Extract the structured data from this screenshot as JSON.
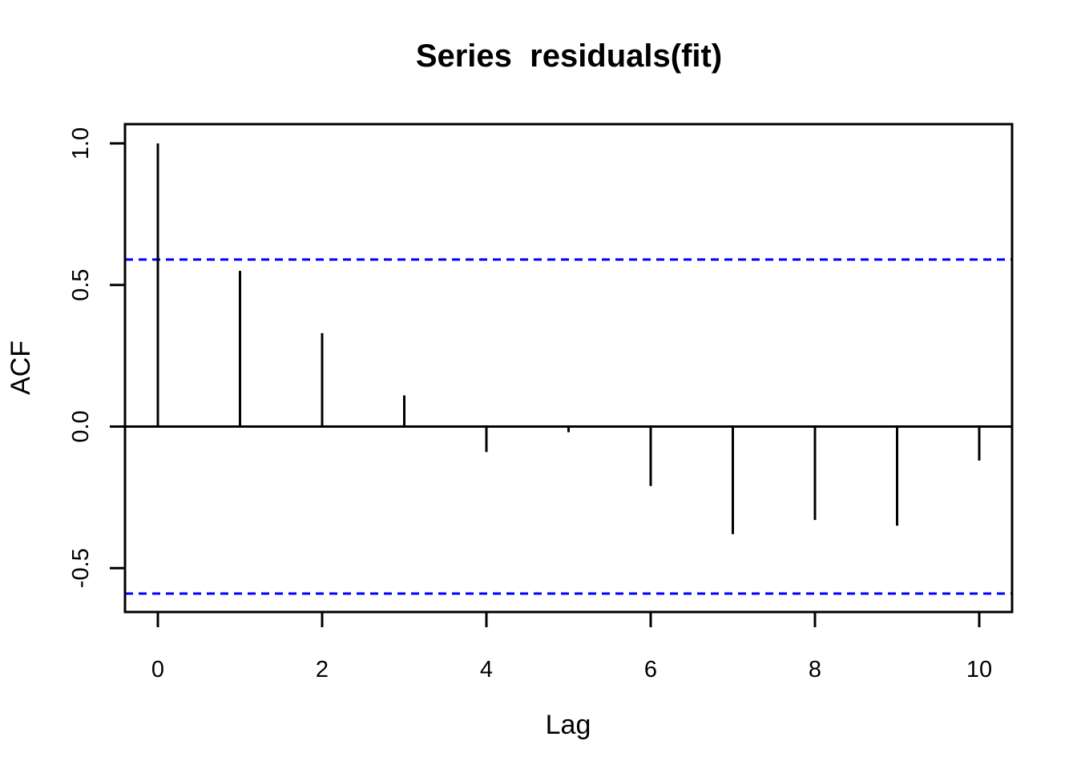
{
  "page": {
    "background": "#FFFFFF"
  },
  "chart_data": {
    "type": "bar",
    "subtype": "stem-acf",
    "title": "Series  residuals(fit)",
    "xlabel": "Lag",
    "ylabel": "ACF",
    "x": [
      0,
      1,
      2,
      3,
      4,
      5,
      6,
      7,
      8,
      9,
      10
    ],
    "series": [
      {
        "name": "ACF",
        "values": [
          1.0,
          0.55,
          0.33,
          0.11,
          -0.09,
          -0.02,
          -0.21,
          -0.38,
          -0.33,
          -0.35,
          -0.12
        ]
      }
    ],
    "confidence_interval": {
      "upper": 0.59,
      "lower": -0.59,
      "line_style": "dashed",
      "color": "#0000FF"
    },
    "xlim": [
      -0.4,
      10.4
    ],
    "ylim": [
      -0.655,
      1.068
    ],
    "x_ticks": [
      0,
      2,
      4,
      6,
      8,
      10
    ],
    "x_tick_labels": [
      "0",
      "2",
      "4",
      "6",
      "8",
      "10"
    ],
    "y_ticks": [
      1.0,
      0.5,
      0.0,
      -0.5
    ],
    "y_tick_labels": [
      "1.0",
      "0.5",
      "0.0",
      "-0.5"
    ],
    "grid": false,
    "legend": "none",
    "baseline": 0,
    "colors": {
      "spike": "#000000",
      "axis": "#000000",
      "ci_line": "#0000FF",
      "background": "#FFFFFF"
    }
  }
}
